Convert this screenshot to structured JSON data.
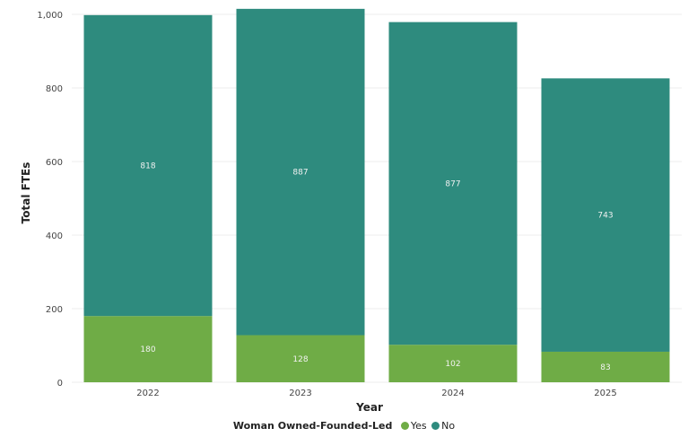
{
  "chart_data": {
    "type": "bar",
    "stacked": true,
    "categories": [
      "2022",
      "2023",
      "2024",
      "2025"
    ],
    "series": [
      {
        "name": "Yes",
        "color": "#6fac46",
        "values": [
          180,
          128,
          102,
          83
        ]
      },
      {
        "name": "No",
        "color": "#2e8b7e",
        "values": [
          818,
          887,
          877,
          743
        ]
      }
    ],
    "xlabel": "Year",
    "ylabel": "Total FTEs",
    "ylim": [
      0,
      1000
    ],
    "yticks": [
      "0",
      "200",
      "400",
      "600",
      "800",
      "1,000"
    ],
    "legend_title": "Woman Owned-Founded-Led",
    "legend_position": "bottom",
    "grid": true
  }
}
